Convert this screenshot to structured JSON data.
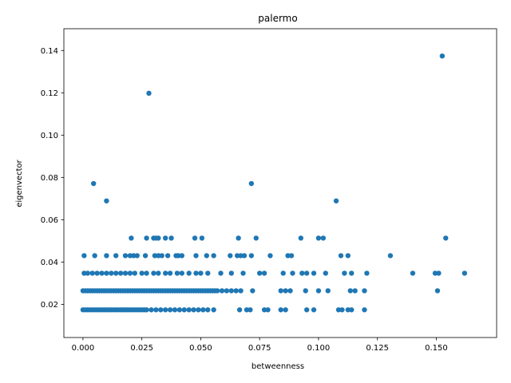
{
  "chart_data": {
    "type": "scatter",
    "title": "palermo",
    "xlabel": "betweenness",
    "ylabel": "eigenvector",
    "xlim": [
      -0.0081,
      0.1756
    ],
    "ylim": [
      0.0043,
      0.1503
    ],
    "xticks": [
      0.0,
      0.025,
      0.05,
      0.075,
      0.1,
      0.125,
      0.15
    ],
    "xtick_labels": [
      "0.000",
      "0.025",
      "0.050",
      "0.075",
      "0.100",
      "0.125",
      "0.150"
    ],
    "yticks": [
      0.02,
      0.04,
      0.06,
      0.08,
      0.1,
      0.12,
      0.14
    ],
    "ytick_labels": [
      "0.02",
      "0.04",
      "0.06",
      "0.08",
      "0.10",
      "0.12",
      "0.14"
    ],
    "grid": false,
    "marker_color": "#1f77b4",
    "points": [
      [
        0.1525,
        0.1374
      ],
      [
        0.028,
        0.1198
      ],
      [
        0.0045,
        0.0771
      ],
      [
        0.0715,
        0.0771
      ],
      [
        0.01,
        0.0689
      ],
      [
        0.1075,
        0.0689
      ],
      [
        0.0205,
        0.0513
      ],
      [
        0.027,
        0.0513
      ],
      [
        0.03,
        0.0513
      ],
      [
        0.031,
        0.0513
      ],
      [
        0.032,
        0.0513
      ],
      [
        0.035,
        0.0513
      ],
      [
        0.0375,
        0.0513
      ],
      [
        0.0475,
        0.0513
      ],
      [
        0.0505,
        0.0513
      ],
      [
        0.066,
        0.0513
      ],
      [
        0.0735,
        0.0513
      ],
      [
        0.0925,
        0.0513
      ],
      [
        0.1,
        0.0513
      ],
      [
        0.102,
        0.0513
      ],
      [
        0.154,
        0.0513
      ],
      [
        0.0005,
        0.043
      ],
      [
        0.005,
        0.043
      ],
      [
        0.01,
        0.043
      ],
      [
        0.014,
        0.043
      ],
      [
        0.018,
        0.043
      ],
      [
        0.02,
        0.043
      ],
      [
        0.0215,
        0.043
      ],
      [
        0.023,
        0.043
      ],
      [
        0.0265,
        0.043
      ],
      [
        0.0305,
        0.043
      ],
      [
        0.032,
        0.043
      ],
      [
        0.0335,
        0.043
      ],
      [
        0.036,
        0.043
      ],
      [
        0.0395,
        0.043
      ],
      [
        0.0405,
        0.043
      ],
      [
        0.042,
        0.043
      ],
      [
        0.048,
        0.043
      ],
      [
        0.0525,
        0.043
      ],
      [
        0.0555,
        0.043
      ],
      [
        0.0625,
        0.043
      ],
      [
        0.0655,
        0.043
      ],
      [
        0.067,
        0.043
      ],
      [
        0.0685,
        0.043
      ],
      [
        0.0715,
        0.043
      ],
      [
        0.0795,
        0.043
      ],
      [
        0.087,
        0.043
      ],
      [
        0.0885,
        0.043
      ],
      [
        0.1095,
        0.043
      ],
      [
        0.1125,
        0.043
      ],
      [
        0.1305,
        0.043
      ],
      [
        0.0005,
        0.0347
      ],
      [
        0.002,
        0.0347
      ],
      [
        0.004,
        0.0347
      ],
      [
        0.006,
        0.0347
      ],
      [
        0.008,
        0.0347
      ],
      [
        0.01,
        0.0347
      ],
      [
        0.012,
        0.0347
      ],
      [
        0.014,
        0.0347
      ],
      [
        0.016,
        0.0347
      ],
      [
        0.018,
        0.0347
      ],
      [
        0.02,
        0.0347
      ],
      [
        0.022,
        0.0347
      ],
      [
        0.025,
        0.0347
      ],
      [
        0.027,
        0.0347
      ],
      [
        0.03,
        0.0347
      ],
      [
        0.032,
        0.0347
      ],
      [
        0.035,
        0.0347
      ],
      [
        0.037,
        0.0347
      ],
      [
        0.04,
        0.0347
      ],
      [
        0.042,
        0.0347
      ],
      [
        0.045,
        0.0347
      ],
      [
        0.048,
        0.0347
      ],
      [
        0.05,
        0.0347
      ],
      [
        0.053,
        0.0347
      ],
      [
        0.0585,
        0.0347
      ],
      [
        0.063,
        0.0347
      ],
      [
        0.068,
        0.0347
      ],
      [
        0.075,
        0.0347
      ],
      [
        0.077,
        0.0347
      ],
      [
        0.085,
        0.0347
      ],
      [
        0.089,
        0.0347
      ],
      [
        0.093,
        0.0347
      ],
      [
        0.095,
        0.0347
      ],
      [
        0.098,
        0.0347
      ],
      [
        0.103,
        0.0347
      ],
      [
        0.111,
        0.0347
      ],
      [
        0.114,
        0.0347
      ],
      [
        0.1205,
        0.0347
      ],
      [
        0.14,
        0.0347
      ],
      [
        0.1495,
        0.0347
      ],
      [
        0.151,
        0.0347
      ],
      [
        0.162,
        0.0347
      ],
      [
        0.0,
        0.0264
      ],
      [
        0.001,
        0.0264
      ],
      [
        0.002,
        0.0264
      ],
      [
        0.003,
        0.0264
      ],
      [
        0.004,
        0.0264
      ],
      [
        0.005,
        0.0264
      ],
      [
        0.006,
        0.0264
      ],
      [
        0.007,
        0.0264
      ],
      [
        0.008,
        0.0264
      ],
      [
        0.009,
        0.0264
      ],
      [
        0.01,
        0.0264
      ],
      [
        0.011,
        0.0264
      ],
      [
        0.012,
        0.0264
      ],
      [
        0.013,
        0.0264
      ],
      [
        0.014,
        0.0264
      ],
      [
        0.015,
        0.0264
      ],
      [
        0.016,
        0.0264
      ],
      [
        0.017,
        0.0264
      ],
      [
        0.018,
        0.0264
      ],
      [
        0.019,
        0.0264
      ],
      [
        0.02,
        0.0264
      ],
      [
        0.021,
        0.0264
      ],
      [
        0.022,
        0.0264
      ],
      [
        0.023,
        0.0264
      ],
      [
        0.024,
        0.0264
      ],
      [
        0.025,
        0.0264
      ],
      [
        0.026,
        0.0264
      ],
      [
        0.027,
        0.0264
      ],
      [
        0.028,
        0.0264
      ],
      [
        0.029,
        0.0264
      ],
      [
        0.03,
        0.0264
      ],
      [
        0.031,
        0.0264
      ],
      [
        0.032,
        0.0264
      ],
      [
        0.033,
        0.0264
      ],
      [
        0.034,
        0.0264
      ],
      [
        0.035,
        0.0264
      ],
      [
        0.036,
        0.0264
      ],
      [
        0.037,
        0.0264
      ],
      [
        0.038,
        0.0264
      ],
      [
        0.039,
        0.0264
      ],
      [
        0.04,
        0.0264
      ],
      [
        0.041,
        0.0264
      ],
      [
        0.042,
        0.0264
      ],
      [
        0.043,
        0.0264
      ],
      [
        0.044,
        0.0264
      ],
      [
        0.045,
        0.0264
      ],
      [
        0.046,
        0.0264
      ],
      [
        0.047,
        0.0264
      ],
      [
        0.048,
        0.0264
      ],
      [
        0.049,
        0.0264
      ],
      [
        0.05,
        0.0264
      ],
      [
        0.051,
        0.0264
      ],
      [
        0.052,
        0.0264
      ],
      [
        0.053,
        0.0264
      ],
      [
        0.054,
        0.0264
      ],
      [
        0.055,
        0.0264
      ],
      [
        0.056,
        0.0264
      ],
      [
        0.057,
        0.0264
      ],
      [
        0.059,
        0.0264
      ],
      [
        0.061,
        0.0264
      ],
      [
        0.063,
        0.0264
      ],
      [
        0.065,
        0.0264
      ],
      [
        0.067,
        0.0264
      ],
      [
        0.072,
        0.0264
      ],
      [
        0.084,
        0.0264
      ],
      [
        0.086,
        0.0264
      ],
      [
        0.088,
        0.0264
      ],
      [
        0.0945,
        0.0264
      ],
      [
        0.1,
        0.0264
      ],
      [
        0.104,
        0.0264
      ],
      [
        0.1135,
        0.0264
      ],
      [
        0.1155,
        0.0264
      ],
      [
        0.1195,
        0.0264
      ],
      [
        0.1505,
        0.0264
      ],
      [
        0.0,
        0.0174
      ],
      [
        0.001,
        0.0174
      ],
      [
        0.002,
        0.0174
      ],
      [
        0.003,
        0.0174
      ],
      [
        0.004,
        0.0174
      ],
      [
        0.005,
        0.0174
      ],
      [
        0.006,
        0.0174
      ],
      [
        0.007,
        0.0174
      ],
      [
        0.008,
        0.0174
      ],
      [
        0.009,
        0.0174
      ],
      [
        0.01,
        0.0174
      ],
      [
        0.011,
        0.0174
      ],
      [
        0.012,
        0.0174
      ],
      [
        0.013,
        0.0174
      ],
      [
        0.014,
        0.0174
      ],
      [
        0.015,
        0.0174
      ],
      [
        0.016,
        0.0174
      ],
      [
        0.017,
        0.0174
      ],
      [
        0.018,
        0.0174
      ],
      [
        0.019,
        0.0174
      ],
      [
        0.02,
        0.0174
      ],
      [
        0.021,
        0.0174
      ],
      [
        0.022,
        0.0174
      ],
      [
        0.023,
        0.0174
      ],
      [
        0.024,
        0.0174
      ],
      [
        0.025,
        0.0174
      ],
      [
        0.026,
        0.0174
      ],
      [
        0.027,
        0.0174
      ],
      [
        0.029,
        0.0174
      ],
      [
        0.031,
        0.0174
      ],
      [
        0.033,
        0.0174
      ],
      [
        0.035,
        0.0174
      ],
      [
        0.037,
        0.0174
      ],
      [
        0.039,
        0.0174
      ],
      [
        0.041,
        0.0174
      ],
      [
        0.043,
        0.0174
      ],
      [
        0.045,
        0.0174
      ],
      [
        0.047,
        0.0174
      ],
      [
        0.049,
        0.0174
      ],
      [
        0.051,
        0.0174
      ],
      [
        0.053,
        0.0174
      ],
      [
        0.0555,
        0.0174
      ],
      [
        0.0665,
        0.0174
      ],
      [
        0.0695,
        0.0174
      ],
      [
        0.071,
        0.0174
      ],
      [
        0.077,
        0.0174
      ],
      [
        0.0785,
        0.0174
      ],
      [
        0.084,
        0.0174
      ],
      [
        0.086,
        0.0174
      ],
      [
        0.095,
        0.0174
      ],
      [
        0.098,
        0.0174
      ],
      [
        0.1085,
        0.0174
      ],
      [
        0.11,
        0.0174
      ],
      [
        0.1125,
        0.0174
      ],
      [
        0.114,
        0.0174
      ],
      [
        0.1195,
        0.0174
      ]
    ]
  }
}
